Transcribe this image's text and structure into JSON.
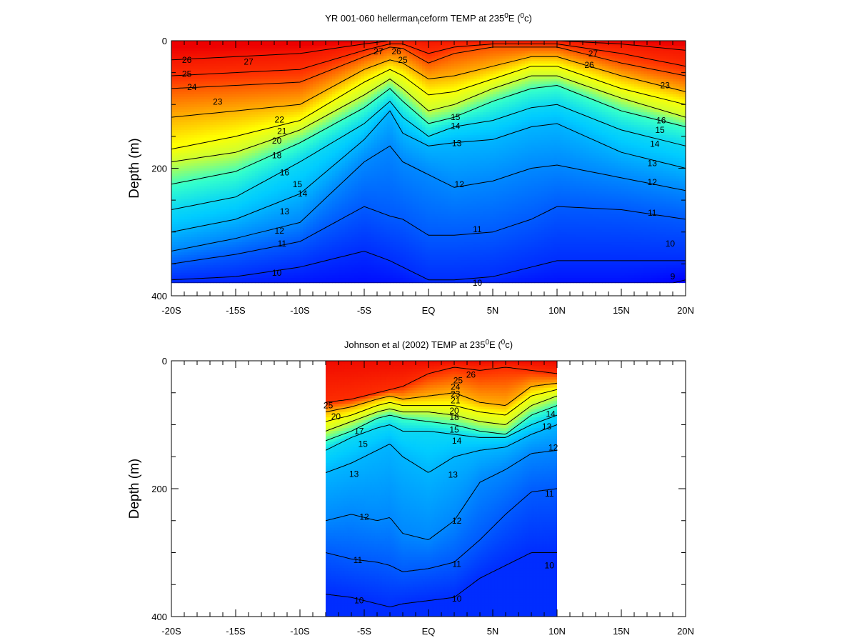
{
  "chart_data": [
    {
      "type": "heatmap",
      "title_parts": [
        "YR 001-060 hellerman",
        "l",
        "ceform TEMP at 235",
        "0",
        "E (",
        "0",
        "c)"
      ],
      "ylabel": "Depth (m)",
      "xlim": [
        -20,
        20
      ],
      "ylim": [
        0,
        400
      ],
      "y_inverted": true,
      "x_ticks": [
        "-20S",
        "-15S",
        "-10S",
        "-5S",
        "EQ",
        "5N",
        "10N",
        "15N",
        "20N"
      ],
      "y_ticks": [
        "0",
        "200",
        "400"
      ],
      "data_extent": {
        "x": [
          -20,
          20
        ],
        "depth": [
          0,
          380
        ]
      },
      "colorscale": [
        "#0000ff",
        "#0066ff",
        "#00ccff",
        "#33ffcc",
        "#ccff33",
        "#ffff00",
        "#ff9900",
        "#ff3300",
        "#ee0000"
      ],
      "temp_range": [
        9,
        27
      ],
      "isotherm_depths": {
        "x": [
          -20,
          -15,
          -10,
          -5,
          -3,
          -2,
          0,
          2,
          5,
          8,
          10,
          15,
          20
        ],
        "levels": [
          {
            "t": 26,
            "d": [
              30,
              25,
              20,
              5,
              0,
              0,
              0,
              0,
              0,
              0,
              0,
              5,
              15
            ]
          },
          {
            "t": 25,
            "d": [
              55,
              50,
              45,
              15,
              5,
              5,
              20,
              10,
              5,
              5,
              5,
              20,
              40
            ]
          },
          {
            "t": 24,
            "d": [
              75,
              70,
              65,
              25,
              10,
              12,
              35,
              20,
              10,
              10,
              10,
              35,
              55
            ]
          },
          {
            "t": 22,
            "d": [
              120,
              110,
              100,
              45,
              30,
              35,
              60,
              55,
              40,
              25,
              25,
              55,
              80
            ]
          },
          {
            "t": 20,
            "d": [
              170,
              150,
              125,
              65,
              45,
              55,
              85,
              80,
              60,
              40,
              40,
              75,
              100
            ]
          },
          {
            "t": 18,
            "d": [
              190,
              175,
              140,
              85,
              60,
              75,
              110,
              100,
              75,
              55,
              55,
              90,
              120
            ]
          },
          {
            "t": 16,
            "d": [
              225,
              205,
              160,
              105,
              75,
              95,
              130,
              120,
              95,
              75,
              70,
              110,
              135
            ]
          },
          {
            "t": 14,
            "d": [
              265,
              245,
              190,
              130,
              95,
              120,
              150,
              135,
              125,
              105,
              100,
              140,
              165
            ]
          },
          {
            "t": 13,
            "d": [
              300,
              280,
              240,
              155,
              110,
              145,
              165,
              160,
              155,
              135,
              130,
              175,
              200
            ]
          },
          {
            "t": 12,
            "d": [
              330,
              310,
              285,
              190,
              165,
              190,
              210,
              230,
              220,
              200,
              195,
              215,
              235
            ]
          },
          {
            "t": 11,
            "d": [
              350,
              335,
              315,
              260,
              275,
              280,
              305,
              305,
              300,
              280,
              260,
              265,
              280
            ]
          },
          {
            "t": 10,
            "d": [
              375,
              370,
              355,
              330,
              345,
              355,
              375,
              375,
              370,
              355,
              345,
              345,
              345
            ]
          },
          {
            "t": 9,
            "d": [
              400,
              400,
              400,
              400,
              400,
              400,
              400,
              400,
              400,
              400,
              400,
              400,
              375
            ]
          }
        ]
      },
      "contour_labels": [
        {
          "text": "26",
          "x": -18.8,
          "d": 30
        },
        {
          "text": "25",
          "x": -18.8,
          "d": 52
        },
        {
          "text": "24",
          "x": -18.4,
          "d": 73
        },
        {
          "text": "23",
          "x": -16.4,
          "d": 96
        },
        {
          "text": "22",
          "x": -11.6,
          "d": 124
        },
        {
          "text": "21",
          "x": -11.4,
          "d": 142
        },
        {
          "text": "20",
          "x": -11.8,
          "d": 157
        },
        {
          "text": "18",
          "x": -11.8,
          "d": 180
        },
        {
          "text": "16",
          "x": -11.2,
          "d": 207
        },
        {
          "text": "15",
          "x": -10.2,
          "d": 225
        },
        {
          "text": "14",
          "x": -9.8,
          "d": 240
        },
        {
          "text": "13",
          "x": -11.2,
          "d": 268
        },
        {
          "text": "12",
          "x": -11.6,
          "d": 298
        },
        {
          "text": "11",
          "x": -11.4,
          "d": 318
        },
        {
          "text": "10",
          "x": -11.8,
          "d": 364
        },
        {
          "text": "27",
          "x": -14.0,
          "d": 33
        },
        {
          "text": "27",
          "x": -3.9,
          "d": 17
        },
        {
          "text": "26",
          "x": -2.5,
          "d": 17
        },
        {
          "text": "25",
          "x": -2.0,
          "d": 30
        },
        {
          "text": "15",
          "x": 2.1,
          "d": 120
        },
        {
          "text": "14",
          "x": 2.1,
          "d": 134
        },
        {
          "text": "13",
          "x": 2.2,
          "d": 161
        },
        {
          "text": "12",
          "x": 2.4,
          "d": 225
        },
        {
          "text": "11",
          "x": 3.8,
          "d": 296
        },
        {
          "text": "10",
          "x": 3.8,
          "d": 380
        },
        {
          "text": "27",
          "x": 12.8,
          "d": 20
        },
        {
          "text": "26",
          "x": 12.5,
          "d": 38
        },
        {
          "text": "23",
          "x": 18.4,
          "d": 70
        },
        {
          "text": "16",
          "x": 18.1,
          "d": 125
        },
        {
          "text": "15",
          "x": 18.0,
          "d": 140
        },
        {
          "text": "14",
          "x": 17.6,
          "d": 162
        },
        {
          "text": "13",
          "x": 17.4,
          "d": 192
        },
        {
          "text": "12",
          "x": 17.4,
          "d": 222
        },
        {
          "text": "11",
          "x": 17.4,
          "d": 270
        },
        {
          "text": "10",
          "x": 18.8,
          "d": 318
        },
        {
          "text": "9",
          "x": 19.0,
          "d": 370
        }
      ]
    },
    {
      "type": "heatmap",
      "title_parts": [
        "Johnson et al (2002) TEMP at 235",
        "0",
        "E (",
        "0",
        "c)"
      ],
      "ylabel": "Depth (m)",
      "xlim": [
        -20,
        20
      ],
      "ylim": [
        0,
        400
      ],
      "y_inverted": true,
      "x_ticks": [
        "-20S",
        "-15S",
        "-10S",
        "-5S",
        "EQ",
        "5N",
        "10N",
        "15N",
        "20N"
      ],
      "y_ticks": [
        "0",
        "200",
        "400"
      ],
      "data_extent": {
        "x": [
          -8,
          10
        ],
        "depth": [
          0,
          400
        ]
      },
      "colorscale": [
        "#0000ff",
        "#0066ff",
        "#00ccff",
        "#33ffcc",
        "#ccff33",
        "#ffff00",
        "#ff9900",
        "#ff3300",
        "#ee0000"
      ],
      "temp_range": [
        9,
        27
      ],
      "isotherm_depths": {
        "x": [
          -8,
          -6,
          -4,
          -3,
          -2,
          0,
          2,
          4,
          6,
          8,
          10
        ],
        "levels": [
          {
            "t": 25,
            "d": [
              65,
              60,
              50,
              45,
              40,
              20,
              10,
              15,
              10,
              15,
              20
            ]
          },
          {
            "t": 22,
            "d": [
              80,
              72,
              60,
              55,
              60,
              55,
              50,
              65,
              70,
              40,
              35
            ]
          },
          {
            "t": 20,
            "d": [
              95,
              85,
              70,
              65,
              70,
              70,
              70,
              80,
              85,
              55,
              45
            ]
          },
          {
            "t": 18,
            "d": [
              110,
              95,
              80,
              75,
              80,
              80,
              85,
              95,
              100,
              70,
              55
            ]
          },
          {
            "t": 16,
            "d": [
              125,
              110,
              90,
              85,
              90,
              95,
              100,
              110,
              115,
              85,
              70
            ]
          },
          {
            "t": 14,
            "d": [
              140,
              120,
              105,
              100,
              110,
              110,
              115,
              120,
              120,
              100,
              85
            ]
          },
          {
            "t": 13,
            "d": [
              175,
              160,
              140,
              130,
              150,
              175,
              150,
              140,
              135,
              115,
              100
            ]
          },
          {
            "t": 12,
            "d": [
              250,
              240,
              250,
              245,
              270,
              280,
              250,
              190,
              170,
              145,
              140
            ]
          },
          {
            "t": 11,
            "d": [
              300,
              310,
              315,
              320,
              330,
              325,
              315,
              280,
              240,
              205,
              200
            ]
          },
          {
            "t": 10,
            "d": [
              365,
              370,
              380,
              385,
              380,
              375,
              370,
              340,
              320,
              300,
              300
            ]
          }
        ]
      },
      "contour_labels": [
        {
          "text": "25",
          "x": -7.8,
          "d": 70
        },
        {
          "text": "20",
          "x": -7.2,
          "d": 87
        },
        {
          "text": "17",
          "x": -5.4,
          "d": 110
        },
        {
          "text": "15",
          "x": -5.1,
          "d": 130
        },
        {
          "text": "13",
          "x": -5.8,
          "d": 177
        },
        {
          "text": "12",
          "x": -5.0,
          "d": 244
        },
        {
          "text": "11",
          "x": -5.5,
          "d": 312
        },
        {
          "text": "10",
          "x": -5.4,
          "d": 375
        },
        {
          "text": "26",
          "x": 3.3,
          "d": 22
        },
        {
          "text": "25",
          "x": 2.3,
          "d": 31
        },
        {
          "text": "24",
          "x": 2.1,
          "d": 41
        },
        {
          "text": "23",
          "x": 2.1,
          "d": 52
        },
        {
          "text": "21",
          "x": 2.1,
          "d": 62
        },
        {
          "text": "20",
          "x": 2.0,
          "d": 78
        },
        {
          "text": "18",
          "x": 2.0,
          "d": 88
        },
        {
          "text": "15",
          "x": 2.0,
          "d": 108
        },
        {
          "text": "14",
          "x": 2.2,
          "d": 125
        },
        {
          "text": "13",
          "x": 1.9,
          "d": 178
        },
        {
          "text": "12",
          "x": 2.2,
          "d": 250
        },
        {
          "text": "11",
          "x": 2.2,
          "d": 318
        },
        {
          "text": "10",
          "x": 2.2,
          "d": 372
        },
        {
          "text": "14",
          "x": 9.5,
          "d": 83
        },
        {
          "text": "13",
          "x": 9.2,
          "d": 103
        },
        {
          "text": "12",
          "x": 9.7,
          "d": 136
        },
        {
          "text": "11",
          "x": 9.4,
          "d": 208
        },
        {
          "text": "10",
          "x": 9.4,
          "d": 320
        }
      ]
    }
  ]
}
